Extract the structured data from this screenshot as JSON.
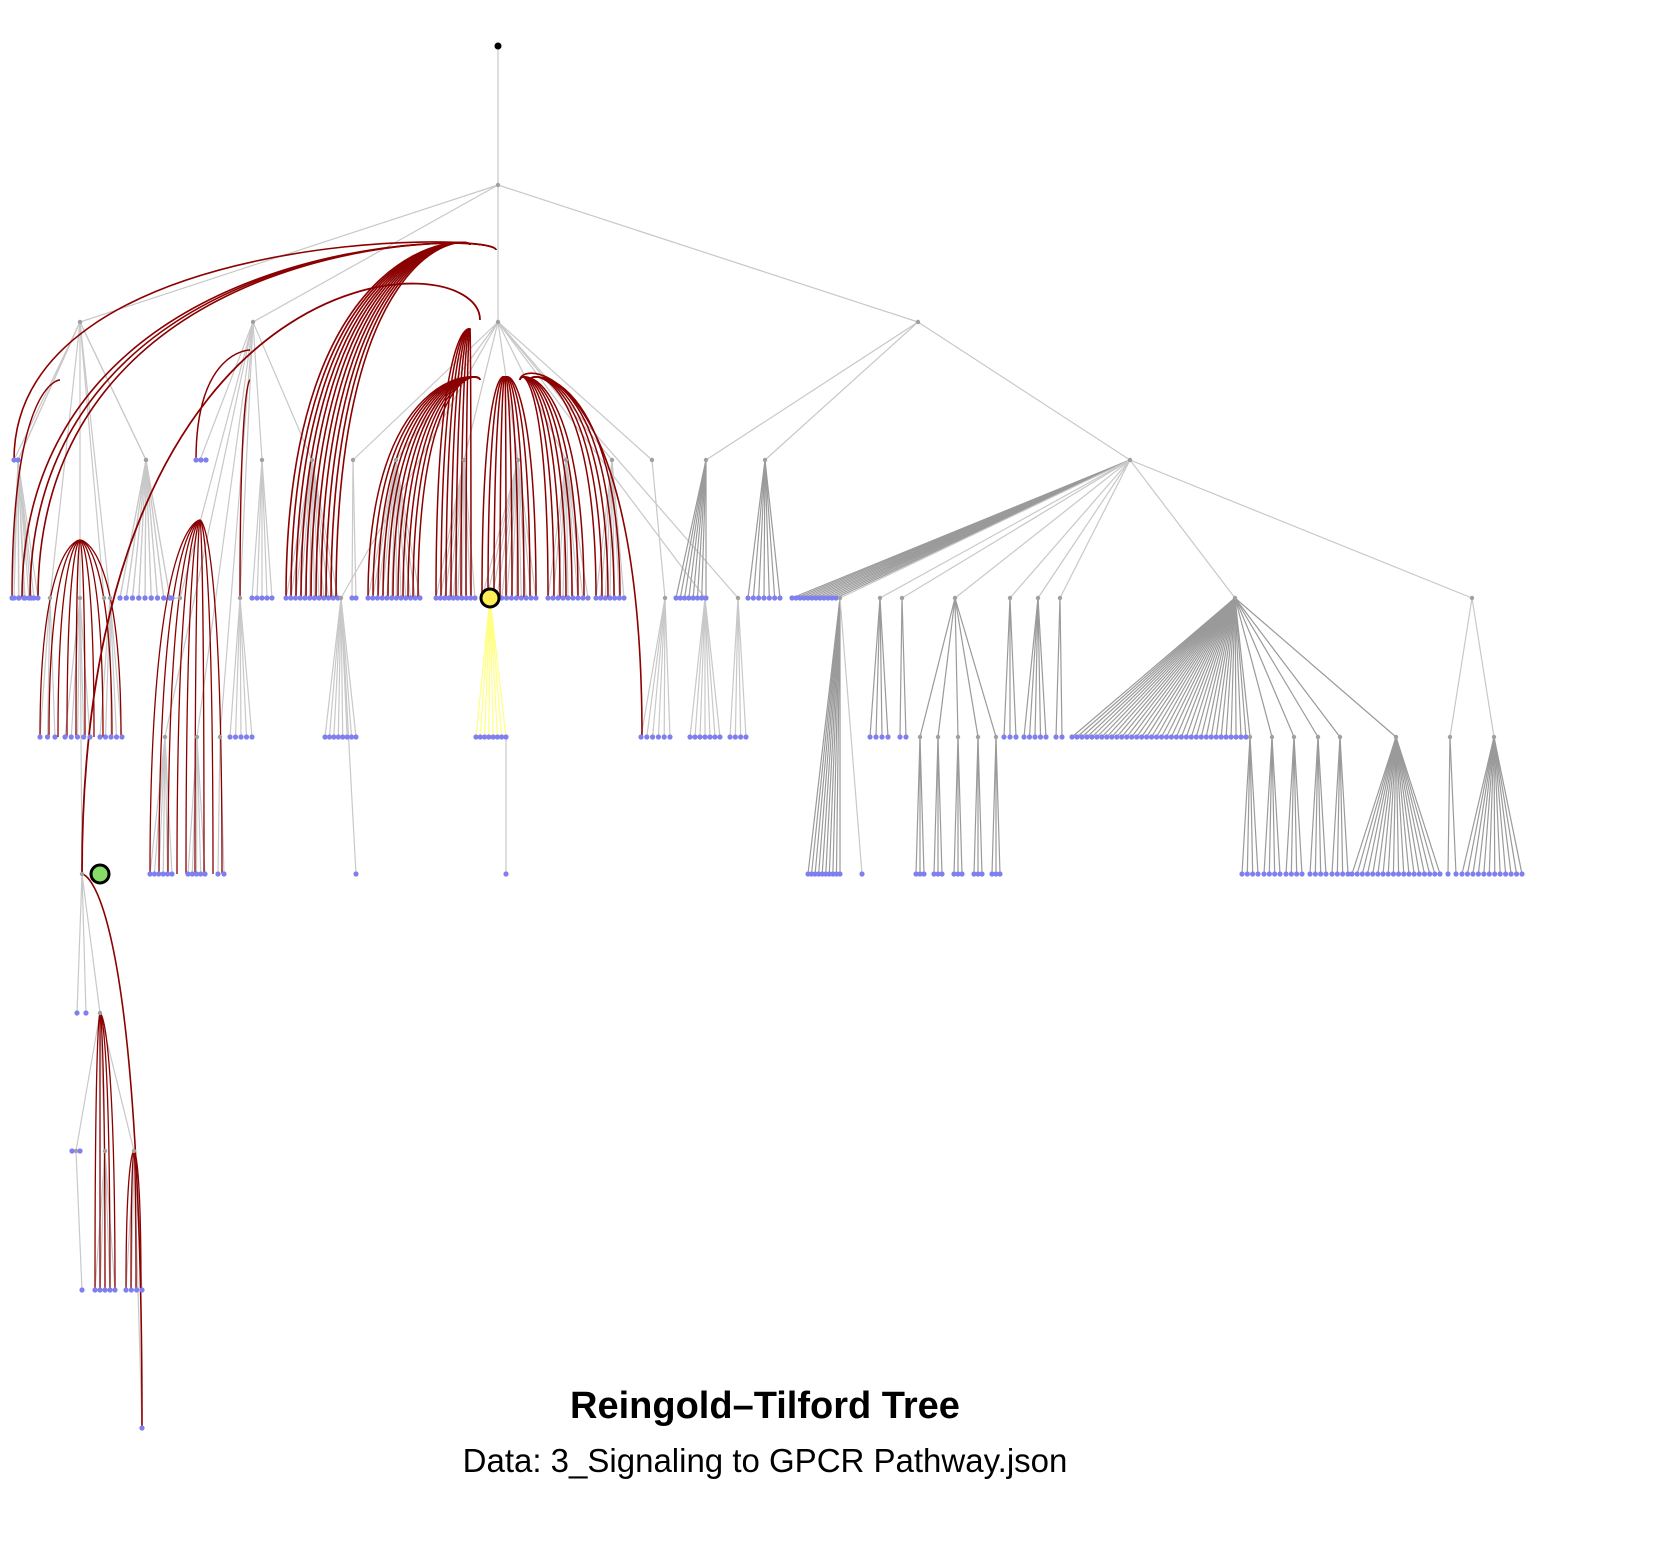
{
  "title": "Reingold–Tilford Tree",
  "subtitle": "Data: 3_Signaling to GPCR Pathway.json",
  "colors": {
    "tree_edge": "#c8c8c8",
    "dense_edge": "#9a9a9a",
    "highlight_edge": "#8b0000",
    "selected_subtree_edge": "#ffff80",
    "internal_node": "#a0a0a0",
    "leaf_node": "#7f7ff0",
    "root_node": "#000000",
    "selected_node_fill": "#ffee55",
    "target_node_fill": "#88dd66",
    "marker_stroke": "#000000"
  },
  "legend": {
    "selected_node": "yellow-circle-marker",
    "target_node": "green-circle-marker"
  },
  "chart_data": {
    "type": "tree",
    "layout": "reingold-tilford",
    "depth_levels": 10,
    "root": "root",
    "highlighted_source": "selected node (yellow)",
    "highlighted_target": "target node (green)"
  }
}
